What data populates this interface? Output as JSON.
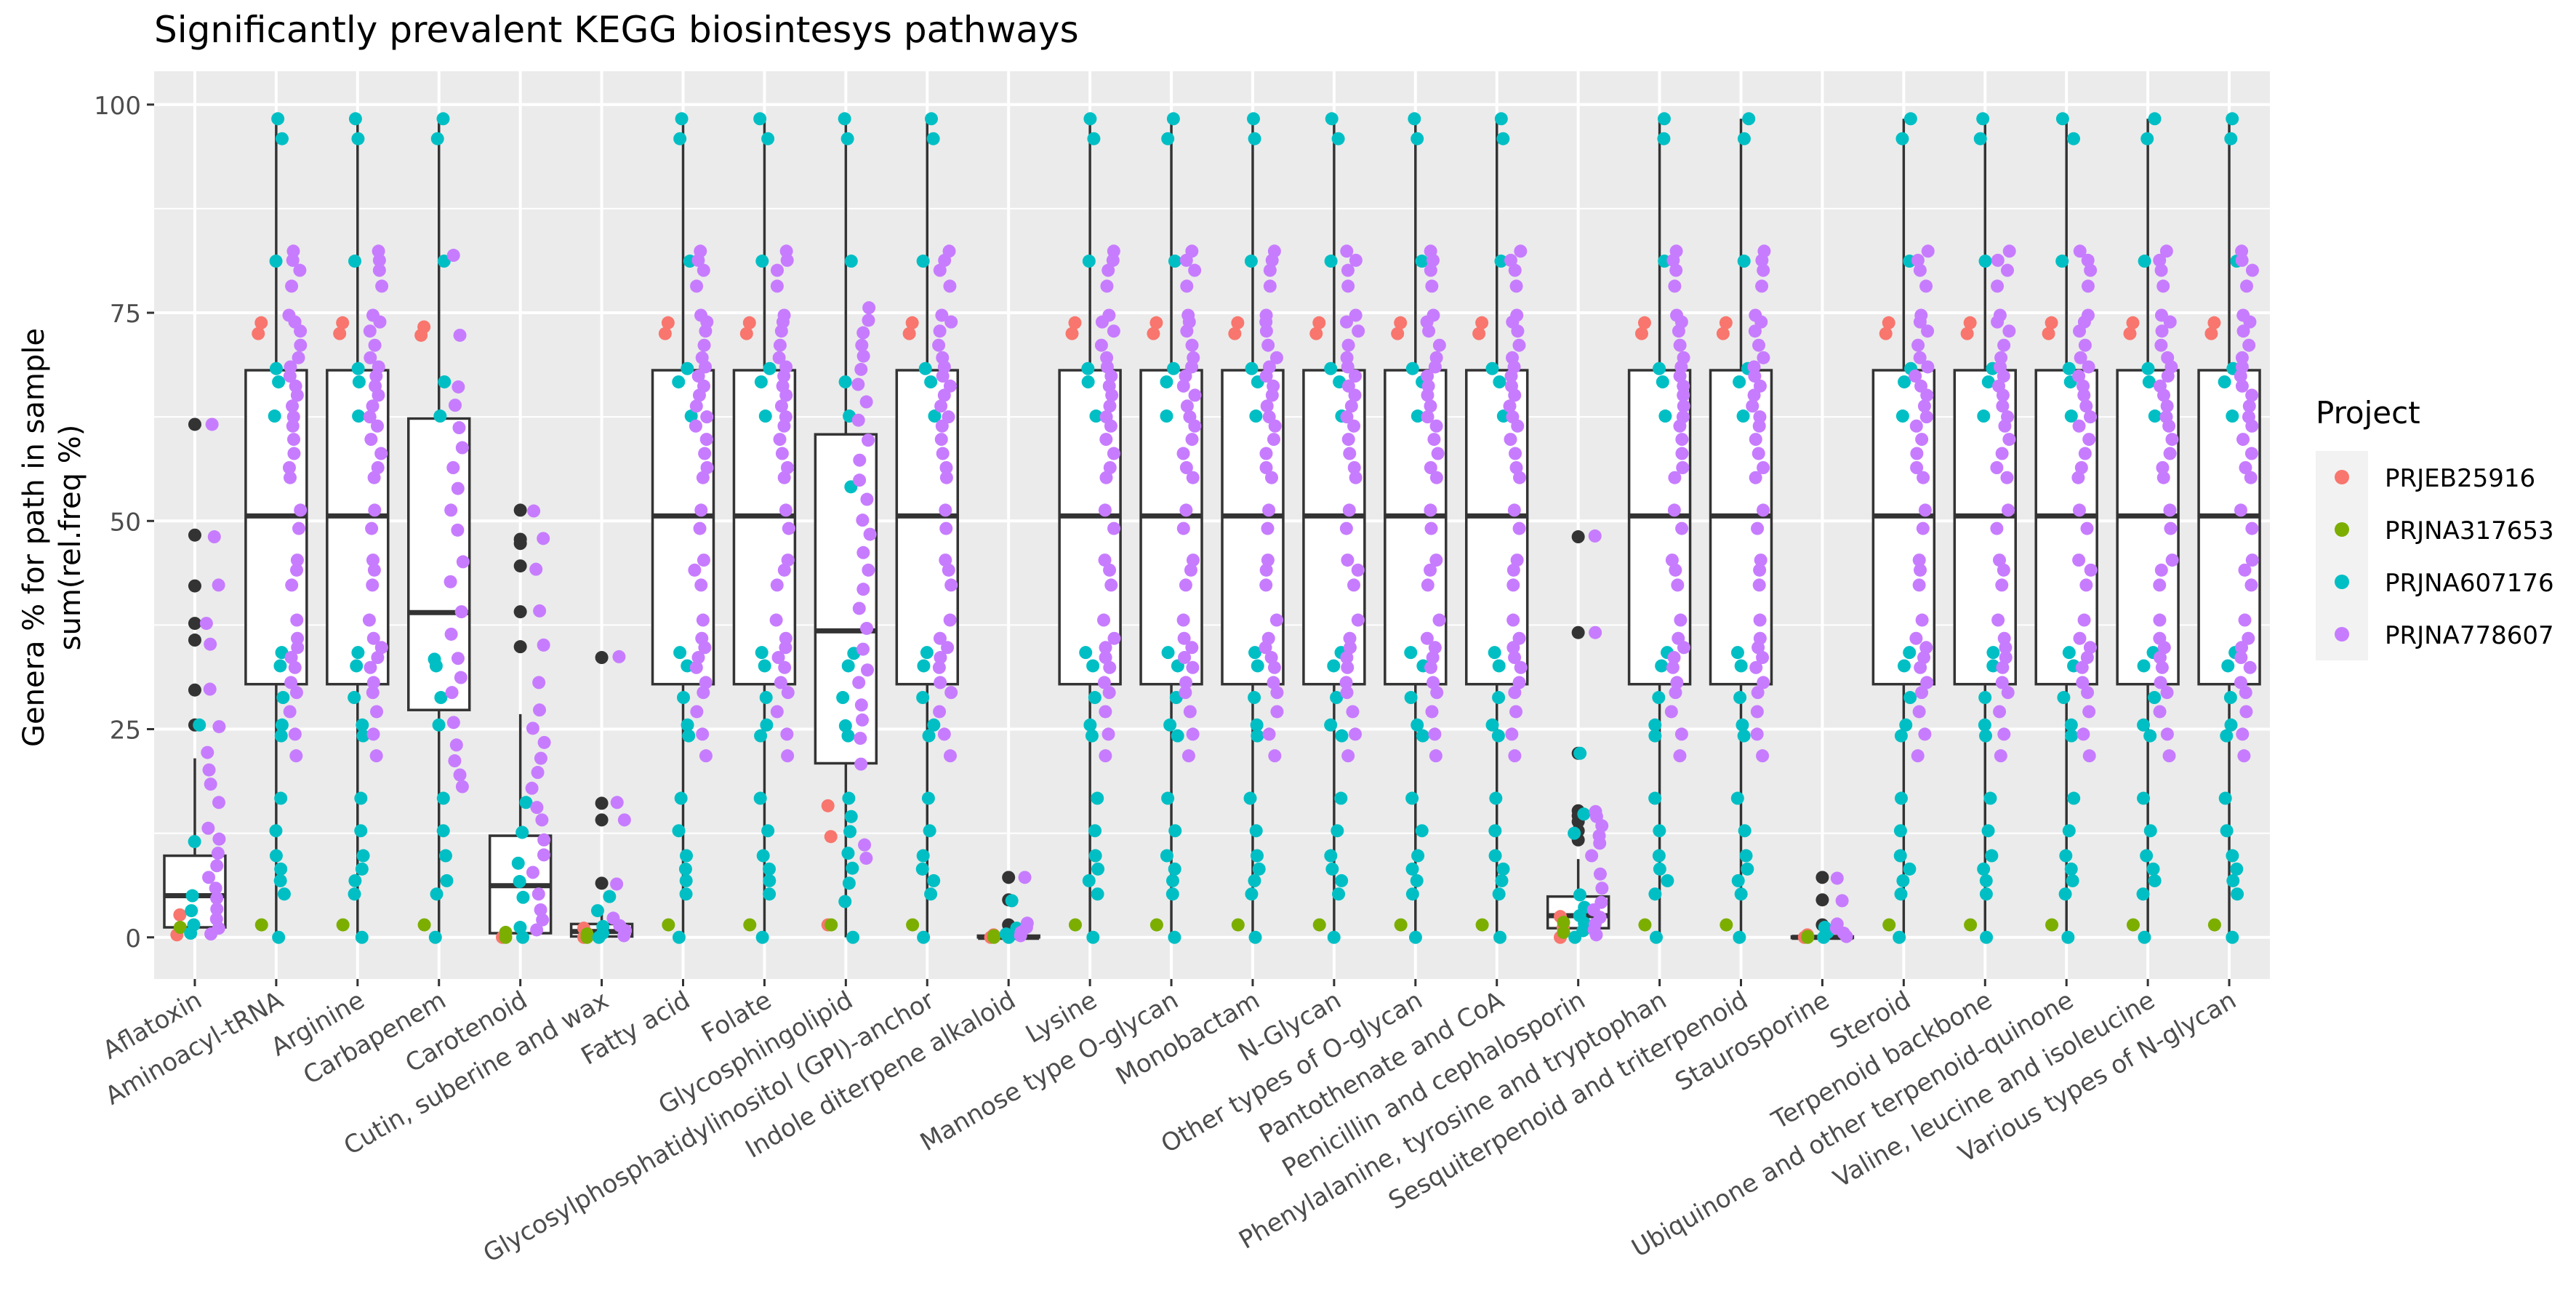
{
  "chart_data": {
    "type": "box",
    "title": "Significantly prevalent KEGG biosintesys pathways",
    "ylabel_lines": [
      "Genera % for path in sample",
      "sum(rel.freq %)"
    ],
    "xlabel": "",
    "ylim": [
      -5,
      104
    ],
    "yticks": [
      0,
      25,
      50,
      75,
      100
    ],
    "grid": true,
    "legend_position": "right",
    "legend": {
      "title": "Project",
      "items": [
        {
          "name": "PRJEB25916",
          "color": "#F8766D"
        },
        {
          "name": "PRJNA317653",
          "color": "#7CAE00"
        },
        {
          "name": "PRJNA607176",
          "color": "#00BFC4"
        },
        {
          "name": "PRJNA778607",
          "color": "#C77CFF"
        }
      ]
    },
    "colors": {
      "panel": "#EBEBEB",
      "grid_major": "#FFFFFF",
      "box_fill": "#FFFFFF",
      "box_line": "#333333",
      "outlier": "#333333",
      "title": "#000000",
      "axis_text": "#4D4D4D"
    },
    "categories": [
      "Aflatoxin",
      "Aminoacyl-tRNA",
      "Arginine",
      "Carbapenem",
      "Carotenoid",
      "Cutin, suberine and wax",
      "Fatty acid",
      "Folate",
      "Glycosphingolipid",
      "Glycosylphosphatidylinositol (GPI)-anchor",
      "Indole diterpene alkaloid",
      "Lysine",
      "Mannose type O-glycan",
      "Monobactam",
      "N-Glycan",
      "Other types of O-glycan",
      "Pantothenate and CoA",
      "Penicillin and cephalosporin",
      "Phenylalanine, tyrosine and tryptophan",
      "Sesquiterpenoid and triterpenoid",
      "Staurosporine",
      "Steroid",
      "Terpenoid backbone",
      "Ubiquinone and other terpenoid-quinone",
      "Valine, leucine and isoleucine",
      "Various types of N-glycan"
    ],
    "boxes": [
      {
        "whisker_low": 0,
        "q1": 1.2,
        "median": 5,
        "q3": 9.8,
        "whisker_high": 21.5,
        "outliers": [
          25.5,
          29.7,
          35.7,
          37.7,
          42.2,
          48.3,
          61.6
        ]
      },
      {
        "whisker_low": 0,
        "q1": 30.4,
        "median": 50.6,
        "q3": 68.1,
        "whisker_high": 98.3,
        "outliers": []
      },
      {
        "whisker_low": 0,
        "q1": 30.4,
        "median": 50.6,
        "q3": 68.1,
        "whisker_high": 98.3,
        "outliers": []
      },
      {
        "whisker_low": 0,
        "q1": 27.3,
        "median": 39,
        "q3": 62.3,
        "whisker_high": 98.3,
        "outliers": []
      },
      {
        "whisker_low": 0,
        "q1": 0.5,
        "median": 6.2,
        "q3": 12.2,
        "whisker_high": 26.8,
        "outliers": [
          34.9,
          39.1,
          44.6,
          47.3,
          47.8,
          51.3
        ]
      },
      {
        "whisker_low": 0,
        "q1": 0.1,
        "median": 0.7,
        "q3": 1.6,
        "whisker_high": 3.5,
        "outliers": [
          6.5,
          14.1,
          16.1,
          33.6
        ]
      },
      {
        "whisker_low": 0,
        "q1": 30.4,
        "median": 50.6,
        "q3": 68.1,
        "whisker_high": 98.3,
        "outliers": []
      },
      {
        "whisker_low": 0,
        "q1": 30.4,
        "median": 50.6,
        "q3": 68.1,
        "whisker_high": 98.3,
        "outliers": []
      },
      {
        "whisker_low": 0,
        "q1": 20.9,
        "median": 36.8,
        "q3": 60.4,
        "whisker_high": 98.3,
        "outliers": []
      },
      {
        "whisker_low": 0,
        "q1": 30.4,
        "median": 50.6,
        "q3": 68.1,
        "whisker_high": 98.3,
        "outliers": []
      },
      {
        "whisker_low": 0,
        "q1": 0,
        "median": 0,
        "q3": 0.2,
        "whisker_high": 0.5,
        "outliers": [
          1.5,
          4.5,
          7.2
        ]
      },
      {
        "whisker_low": 0,
        "q1": 30.4,
        "median": 50.6,
        "q3": 68.1,
        "whisker_high": 98.3,
        "outliers": []
      },
      {
        "whisker_low": 0,
        "q1": 30.4,
        "median": 50.6,
        "q3": 68.1,
        "whisker_high": 98.3,
        "outliers": []
      },
      {
        "whisker_low": 0,
        "q1": 30.4,
        "median": 50.6,
        "q3": 68.1,
        "whisker_high": 98.3,
        "outliers": []
      },
      {
        "whisker_low": 0,
        "q1": 30.4,
        "median": 50.6,
        "q3": 68.1,
        "whisker_high": 98.3,
        "outliers": []
      },
      {
        "whisker_low": 0,
        "q1": 30.4,
        "median": 50.6,
        "q3": 68.1,
        "whisker_high": 98.3,
        "outliers": []
      },
      {
        "whisker_low": 0,
        "q1": 30.4,
        "median": 50.6,
        "q3": 68.1,
        "whisker_high": 98.3,
        "outliers": []
      },
      {
        "whisker_low": 0,
        "q1": 1.1,
        "median": 2.6,
        "q3": 4.9,
        "whisker_high": 9.4,
        "outliers": [
          11.7,
          12.8,
          13.9,
          14.6,
          15.2,
          22.1,
          36.6,
          48.1
        ]
      },
      {
        "whisker_low": 0,
        "q1": 30.4,
        "median": 50.6,
        "q3": 68.1,
        "whisker_high": 98.3,
        "outliers": []
      },
      {
        "whisker_low": 0,
        "q1": 30.4,
        "median": 50.6,
        "q3": 68.1,
        "whisker_high": 98.3,
        "outliers": []
      },
      {
        "whisker_low": 0,
        "q1": 0,
        "median": 0,
        "q3": 0.1,
        "whisker_high": 0.3,
        "outliers": [
          1.5,
          4.5,
          7.2
        ]
      },
      {
        "whisker_low": 0,
        "q1": 30.4,
        "median": 50.6,
        "q3": 68.1,
        "whisker_high": 98.3,
        "outliers": []
      },
      {
        "whisker_low": 0,
        "q1": 30.4,
        "median": 50.6,
        "q3": 68.1,
        "whisker_high": 98.3,
        "outliers": []
      },
      {
        "whisker_low": 0,
        "q1": 30.4,
        "median": 50.6,
        "q3": 68.1,
        "whisker_high": 98.3,
        "outliers": []
      },
      {
        "whisker_low": 0,
        "q1": 30.4,
        "median": 50.6,
        "q3": 68.1,
        "whisker_high": 98.3,
        "outliers": []
      },
      {
        "whisker_low": 0,
        "q1": 30.4,
        "median": 50.6,
        "q3": 68.1,
        "whisker_high": 98.3,
        "outliers": []
      }
    ],
    "pattern_points": {
      "PRJEB25916": [
        72.5,
        73.8
      ],
      "PRJNA317653": [
        1.5
      ],
      "PRJNA607176": [
        0,
        5.2,
        6.8,
        8.2,
        9.8,
        12.8,
        16.7,
        24.2,
        25.5,
        28.8,
        32.6,
        34.2,
        62.6,
        66.7,
        68.3,
        81.2,
        95.9,
        98.3
      ],
      "PRJNA778607": [
        21.8,
        24.4,
        27.1,
        29.4,
        30.6,
        32.4,
        33.6,
        34.8,
        35.9,
        38.1,
        42.3,
        44.1,
        45.3,
        49.1,
        51.3,
        55.2,
        56.4,
        58.1,
        59.8,
        61.4,
        62.5,
        63.8,
        65.1,
        66.2,
        67.4,
        68.5,
        69.6,
        71.1,
        72.8,
        73.9,
        74.7,
        78.2,
        80.1,
        81.3,
        82.4
      ]
    },
    "pattern_categories": [
      1,
      2,
      6,
      7,
      9,
      11,
      12,
      13,
      14,
      15,
      16,
      18,
      19,
      21,
      22,
      23,
      24,
      25
    ],
    "custom_points": [
      {
        "category": 0,
        "project": "PRJEB25916",
        "values": [
          0.3,
          2.7
        ]
      },
      {
        "category": 0,
        "project": "PRJNA317653",
        "values": [
          1.2
        ]
      },
      {
        "category": 0,
        "project": "PRJNA607176",
        "values": [
          0.5,
          1.5,
          3.2,
          5,
          11.5,
          25.5
        ]
      },
      {
        "category": 0,
        "project": "PRJNA778607",
        "values": [
          0.4,
          1.1,
          2.2,
          3.4,
          4.7,
          5.9,
          7.2,
          8.6,
          10.1,
          11.8,
          13.1,
          16.2,
          18.4,
          20.1,
          22.2,
          25.3,
          29.8,
          35.2,
          37.7,
          42.3,
          48.1,
          61.6
        ]
      },
      {
        "category": 3,
        "project": "PRJEB25916",
        "values": [
          72.3,
          73.3
        ]
      },
      {
        "category": 3,
        "project": "PRJNA317653",
        "values": [
          1.5
        ]
      },
      {
        "category": 3,
        "project": "PRJNA607176",
        "values": [
          0,
          5.2,
          6.8,
          9.8,
          12.8,
          16.7,
          25.5,
          28.8,
          32.6,
          33.4,
          62.6,
          66.7,
          81.2,
          95.9,
          98.3
        ]
      },
      {
        "category": 3,
        "project": "PRJNA778607",
        "values": [
          18.1,
          19.5,
          21.2,
          23.1,
          25.8,
          29.4,
          31.2,
          33.5,
          36.4,
          39.1,
          42.7,
          45.1,
          48.9,
          51.3,
          53.9,
          56.4,
          58.8,
          61.2,
          63.9,
          66.1,
          72.3,
          81.9
        ]
      },
      {
        "category": 4,
        "project": "PRJEB25916",
        "values": [
          0,
          0.3
        ]
      },
      {
        "category": 4,
        "project": "PRJNA317653",
        "values": [
          0,
          0.6
        ]
      },
      {
        "category": 4,
        "project": "PRJNA607176",
        "values": [
          0,
          1.2,
          4.8,
          6.7,
          8.9,
          12.6,
          16.2
        ]
      },
      {
        "category": 4,
        "project": "PRJNA778607",
        "values": [
          0.9,
          2.1,
          3.3,
          5.2,
          7.8,
          9.9,
          11.7,
          14.1,
          15.6,
          17.9,
          19.8,
          21.5,
          23.4,
          25.1,
          27.3,
          30.6,
          35.1,
          39.2,
          44.2,
          47.9,
          51.2
        ]
      },
      {
        "category": 5,
        "project": "PRJEB25916",
        "values": [
          0,
          0.5,
          1.1
        ]
      },
      {
        "category": 5,
        "project": "PRJNA317653",
        "values": [
          0,
          0.4
        ]
      },
      {
        "category": 5,
        "project": "PRJNA607176",
        "values": [
          0,
          0.5,
          1.3,
          3.2,
          4.9
        ]
      },
      {
        "category": 5,
        "project": "PRJNA778607",
        "values": [
          0.2,
          0.8,
          1.4,
          2.3,
          6.4,
          14.1,
          16.2,
          33.7
        ]
      },
      {
        "category": 8,
        "project": "PRJEB25916",
        "values": [
          1.5,
          12.1,
          15.8
        ]
      },
      {
        "category": 8,
        "project": "PRJNA317653",
        "values": [
          1.5
        ]
      },
      {
        "category": 8,
        "project": "PRJNA607176",
        "values": [
          0,
          4.3,
          6.5,
          8.3,
          10.1,
          12.7,
          14.5,
          16.7,
          24.2,
          25.4,
          28.8,
          32.6,
          34.1,
          54.1,
          62.6,
          66.7,
          81.2,
          95.9,
          98.3
        ]
      },
      {
        "category": 8,
        "project": "PRJNA778607",
        "values": [
          9.5,
          11.1,
          20.8,
          23.9,
          26.1,
          27.9,
          30.6,
          32.1,
          34.6,
          37.1,
          39.5,
          41.8,
          44.1,
          46.2,
          48.4,
          50.1,
          52.6,
          54.9,
          57.3,
          59.7,
          62.1,
          64.3,
          66.4,
          68.2,
          69.8,
          71.1,
          72.6,
          74.1,
          75.6
        ]
      },
      {
        "category": 10,
        "project": "PRJEB25916",
        "values": [
          0,
          0.3
        ]
      },
      {
        "category": 10,
        "project": "PRJNA317653",
        "values": [
          0,
          0.2
        ]
      },
      {
        "category": 10,
        "project": "PRJNA607176",
        "values": [
          0,
          0.4,
          1.1,
          4.4
        ]
      },
      {
        "category": 10,
        "project": "PRJNA778607",
        "values": [
          0.2,
          0.6,
          1.2,
          1.7,
          7.2
        ]
      },
      {
        "category": 17,
        "project": "PRJEB25916",
        "values": [
          0,
          1.2,
          2.5
        ]
      },
      {
        "category": 17,
        "project": "PRJNA317653",
        "values": [
          0.6,
          1.8
        ]
      },
      {
        "category": 17,
        "project": "PRJNA607176",
        "values": [
          0,
          0.8,
          1.7,
          2.6,
          3.6,
          5.1,
          12.5,
          14.8,
          22.1
        ]
      },
      {
        "category": 17,
        "project": "PRJNA778607",
        "values": [
          0.3,
          0.9,
          1.6,
          2.4,
          3.3,
          4.2,
          5.9,
          7.6,
          9.8,
          11.3,
          12.2,
          13.4,
          14.5,
          15.1,
          36.6,
          48.2
        ]
      },
      {
        "category": 20,
        "project": "PRJEB25916",
        "values": [
          0,
          0.3
        ]
      },
      {
        "category": 20,
        "project": "PRJNA317653",
        "values": [
          0,
          0.1
        ]
      },
      {
        "category": 20,
        "project": "PRJNA607176",
        "values": [
          0,
          0.6,
          1.2
        ]
      },
      {
        "category": 20,
        "project": "PRJNA778607",
        "values": [
          0.1,
          0.5,
          1.1,
          1.6,
          4.4,
          7.1
        ]
      }
    ]
  }
}
